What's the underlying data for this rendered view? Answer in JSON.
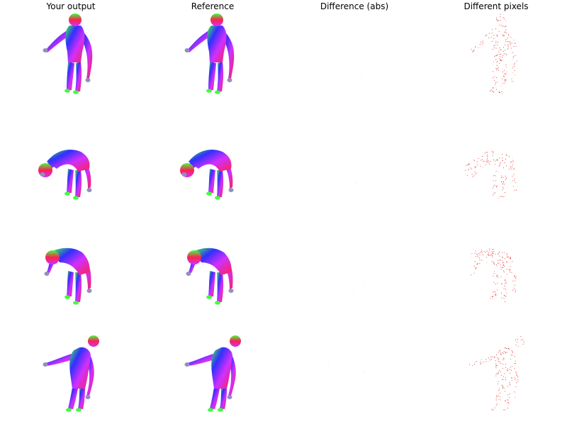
{
  "headers": {
    "output": "Your output",
    "reference": "Reference",
    "difference": "Difference (abs)",
    "different_pixels": "Different pixels"
  },
  "rows": [
    {
      "pose": "standing-arm-out"
    },
    {
      "pose": "bent-over-head-left"
    },
    {
      "pose": "bent-over-head-down"
    },
    {
      "pose": "leaning-arm-out"
    }
  ],
  "colors": {
    "background": "#ffffff",
    "mask_dots": "#e02020",
    "diff_dots": "#f2f2f2",
    "normal_red": "#ff2050",
    "normal_green": "#40ff40",
    "normal_blue": "#3030ff",
    "normal_magenta": "#d030ff"
  }
}
